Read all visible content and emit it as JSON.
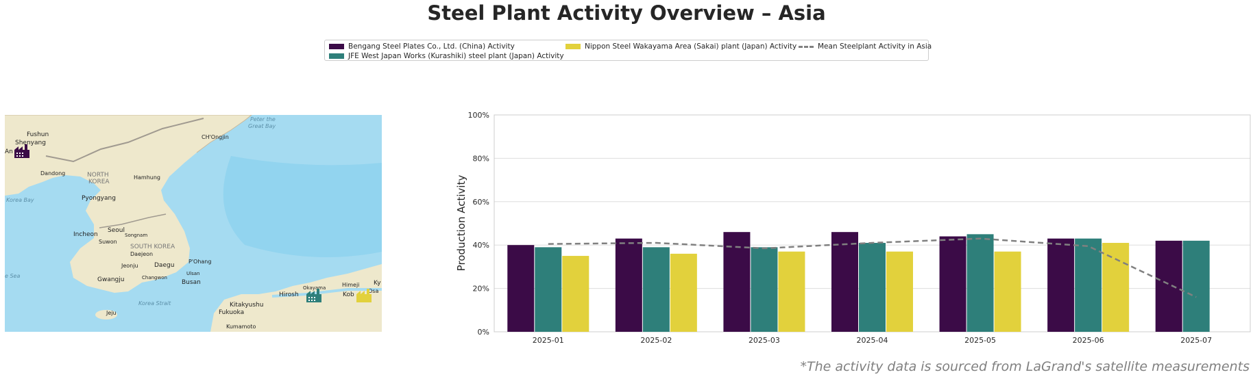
{
  "title": "Steel Plant Activity Overview – Asia",
  "legend": {
    "items": [
      {
        "label": "Bengang Steel Plates Co., Ltd. (China) Activity",
        "color": "#3b0b47",
        "kind": "bar"
      },
      {
        "label": "JFE West Japan Works (Kurashiki) steel plant (Japan) Activity",
        "color": "#2e7f7a",
        "kind": "bar"
      },
      {
        "label": "Nippon Steel Wakayama Area (Sakai) plant (Japan) Activity",
        "color": "#e2d13c",
        "kind": "bar"
      },
      {
        "label": "Mean Steelplant Activity in Asia",
        "color": "#808080",
        "kind": "dashed-line"
      }
    ]
  },
  "map": {
    "labels": {
      "fushun": "Fushun",
      "shenyang": "Shenyang",
      "an": "An",
      "dandong": "Dandong",
      "north_korea_1": "NORTH",
      "north_korea_2": "KOREA",
      "hamhung": "Hamhung",
      "chongjin": "CH'Ongjin",
      "peter": "Peter the",
      "great_bay": "Great Bay",
      "korea_bay": "Korea Bay",
      "pyongyang": "Pyongyang",
      "seoul": "Seoul",
      "incheon": "Incheon",
      "suwon": "Suwon",
      "songnam": "Songnam",
      "south_korea": "SOUTH KOREA",
      "daejeon": "Daejeon",
      "jeonju": "Jeonju",
      "daegu": "Daegu",
      "pohang": "P'Ohang",
      "ulsan": "Ulsan",
      "changwon": "Changwon",
      "gwangju": "Gwangju",
      "busan": "Busan",
      "sea": "e Sea",
      "jeju": "Jeju",
      "korea_strait": "Korea Strait",
      "kitakyushu": "Kitakyushu",
      "fukuoka": "Fukuoka",
      "kumamoto": "Kumamoto",
      "hiroshima": "Hirosh",
      "okayama": "Okayama",
      "himeji": "Himeji",
      "kobe": "Kob",
      "osaka": "Osa",
      "ky": "Ky"
    },
    "colors": {
      "land": "#eee8cc",
      "water": "#a5dbf1",
      "deep_water": "#8fd3ef"
    }
  },
  "chart_data": {
    "type": "bar",
    "categories": [
      "2025-01",
      "2025-02",
      "2025-03",
      "2025-04",
      "2025-05",
      "2025-06",
      "2025-07"
    ],
    "series": [
      {
        "name": "Bengang Steel Plates Co., Ltd. (China) Activity",
        "color": "#3b0b47",
        "values": [
          40,
          43,
          46,
          46,
          44,
          43,
          42
        ]
      },
      {
        "name": "JFE West Japan Works (Kurashiki) steel plant (Japan) Activity",
        "color": "#2e7f7a",
        "values": [
          39,
          39,
          39,
          41,
          45,
          43,
          42
        ]
      },
      {
        "name": "Nippon Steel Wakayama Area (Sakai) plant (Japan) Activity",
        "color": "#e2d13c",
        "values": [
          35,
          36,
          37,
          37,
          37,
          41,
          null
        ]
      }
    ],
    "line": {
      "name": "Mean Steelplant Activity in Asia",
      "color": "#808080",
      "values": [
        40.5,
        41,
        38.5,
        41,
        43,
        39.5,
        16
      ]
    },
    "ylabel": "Production Activity",
    "xlabel": "",
    "ylim": [
      0,
      100
    ],
    "yticks": [
      0,
      20,
      40,
      60,
      80,
      100
    ],
    "ytick_labels": [
      "0%",
      "20%",
      "40%",
      "60%",
      "80%",
      "100%"
    ],
    "grid": true
  },
  "footnote": "*The activity data is sourced from LaGrand's satellite measurements"
}
